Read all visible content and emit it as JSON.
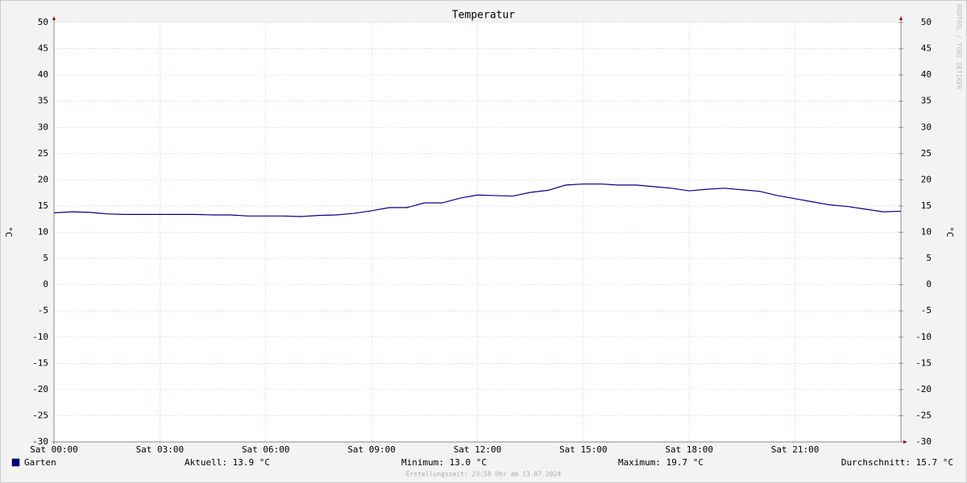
{
  "chart_data": {
    "type": "line",
    "title": "Temperatur",
    "ylabel": "°C",
    "y2label": "°C",
    "x": [
      0,
      0.5,
      1,
      1.5,
      2,
      3,
      4,
      4.5,
      5,
      5.5,
      6,
      6.5,
      7,
      7.5,
      8,
      8.5,
      9,
      9.5,
      10,
      10.5,
      11,
      11.5,
      12,
      12.5,
      13,
      13.5,
      14,
      14.5,
      15,
      15.5,
      16,
      16.5,
      17,
      17.5,
      18,
      18.5,
      19,
      19.5,
      20,
      20.5,
      21,
      21.5,
      22,
      22.5,
      23,
      23.5,
      24
    ],
    "series": [
      {
        "name": "Garten",
        "color": "#00008b",
        "values": [
          13.7,
          13.9,
          13.8,
          13.5,
          13.4,
          13.4,
          13.4,
          13.3,
          13.3,
          13.1,
          13.1,
          13.1,
          13.0,
          13.2,
          13.3,
          13.6,
          14.1,
          14.7,
          14.7,
          15.6,
          15.6,
          16.5,
          17.1,
          17.0,
          16.9,
          17.6,
          18.0,
          19.0,
          19.2,
          19.2,
          19.0,
          19.0,
          18.7,
          18.4,
          17.9,
          18.2,
          18.4,
          18.1,
          17.8,
          17.0,
          16.4,
          15.8,
          15.2,
          14.9,
          14.4,
          13.9,
          14.0
        ]
      }
    ],
    "xlim": [
      0,
      24
    ],
    "xticks": [
      {
        "value": 0,
        "label": "Sat 00:00"
      },
      {
        "value": 3,
        "label": "Sat 03:00"
      },
      {
        "value": 6,
        "label": "Sat 06:00"
      },
      {
        "value": 9,
        "label": "Sat 09:00"
      },
      {
        "value": 12,
        "label": "Sat 12:00"
      },
      {
        "value": 15,
        "label": "Sat 15:00"
      },
      {
        "value": 18,
        "label": "Sat 18:00"
      },
      {
        "value": 21,
        "label": "Sat 21:00"
      }
    ],
    "ylim": [
      -30,
      50
    ],
    "yticks": [
      -30,
      -25,
      -20,
      -15,
      -10,
      -5,
      0,
      5,
      10,
      15,
      20,
      25,
      30,
      35,
      40,
      45,
      50
    ],
    "y2lim": [
      -30,
      50
    ],
    "y2ticks": [
      -30,
      -25,
      -20,
      -15,
      -10,
      -5,
      0,
      5,
      10,
      15,
      20,
      25,
      30,
      35,
      40,
      45,
      50
    ],
    "grid": true,
    "stats": [
      "Aktuell: 13.9 °C",
      "Minimum: 13.0 °C",
      "Maximum: 19.7 °C",
      "Durchschnitt: 15.7 °C"
    ],
    "footer": "Erstellungszeit: 23:58 Uhr am 13.07.2024",
    "watermark": "RRDTOOL / TOBI OETIKER"
  }
}
